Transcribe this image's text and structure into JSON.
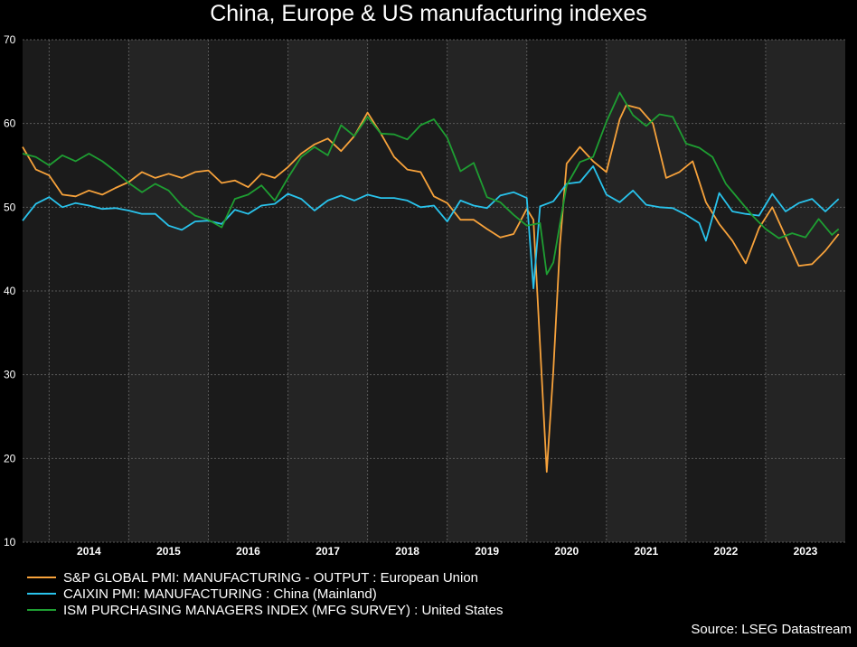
{
  "chart_data": {
    "type": "line",
    "title": "China, Europe & US manufacturing indexes",
    "source": "Source: LSEG Datastream",
    "x_axis": {
      "labels": [
        "2014",
        "2015",
        "2016",
        "2017",
        "2018",
        "2019",
        "2020",
        "2021",
        "2022",
        "2023"
      ],
      "range": [
        "2013-09",
        "2023-12"
      ]
    },
    "y_axis": {
      "ticks": [
        "70",
        "60",
        "50",
        "40",
        "30",
        "20",
        "10"
      ],
      "ylim": [
        10,
        70
      ]
    },
    "grid": true,
    "legend_placement": "bottom-left",
    "series": [
      {
        "name": "S&P GLOBAL PMI: MANUFACTURING - OUTPUT : European Union",
        "color": "#f7a23b",
        "points": [
          [
            "2013-09",
            57.2
          ],
          [
            "2013-11",
            54.5
          ],
          [
            "2014-01",
            53.8
          ],
          [
            "2014-03",
            51.5
          ],
          [
            "2014-05",
            51.3
          ],
          [
            "2014-07",
            52.0
          ],
          [
            "2014-09",
            51.5
          ],
          [
            "2014-11",
            52.3
          ],
          [
            "2015-01",
            53.0
          ],
          [
            "2015-03",
            54.2
          ],
          [
            "2015-05",
            53.5
          ],
          [
            "2015-07",
            54.0
          ],
          [
            "2015-09",
            53.5
          ],
          [
            "2015-11",
            54.2
          ],
          [
            "2016-01",
            54.4
          ],
          [
            "2016-03",
            52.9
          ],
          [
            "2016-05",
            53.2
          ],
          [
            "2016-07",
            52.4
          ],
          [
            "2016-09",
            54.0
          ],
          [
            "2016-11",
            53.5
          ],
          [
            "2017-01",
            54.8
          ],
          [
            "2017-03",
            56.4
          ],
          [
            "2017-05",
            57.5
          ],
          [
            "2017-07",
            58.2
          ],
          [
            "2017-09",
            56.7
          ],
          [
            "2017-11",
            58.5
          ],
          [
            "2018-01",
            61.3
          ],
          [
            "2018-03",
            58.8
          ],
          [
            "2018-05",
            56.0
          ],
          [
            "2018-07",
            54.5
          ],
          [
            "2018-09",
            54.2
          ],
          [
            "2018-11",
            51.3
          ],
          [
            "2019-01",
            50.5
          ],
          [
            "2019-03",
            48.5
          ],
          [
            "2019-05",
            48.5
          ],
          [
            "2019-07",
            47.4
          ],
          [
            "2019-09",
            46.4
          ],
          [
            "2019-11",
            46.8
          ],
          [
            "2020-01",
            49.8
          ],
          [
            "2020-02",
            48.5
          ],
          [
            "2020-04",
            18.4
          ],
          [
            "2020-05",
            30.5
          ],
          [
            "2020-06",
            45.5
          ],
          [
            "2020-07",
            55.2
          ],
          [
            "2020-09",
            57.2
          ],
          [
            "2020-11",
            55.5
          ],
          [
            "2021-01",
            54.2
          ],
          [
            "2021-03",
            60.5
          ],
          [
            "2021-04",
            62.2
          ],
          [
            "2021-06",
            61.8
          ],
          [
            "2021-08",
            60.0
          ],
          [
            "2021-10",
            53.5
          ],
          [
            "2021-12",
            54.2
          ],
          [
            "2022-02",
            55.5
          ],
          [
            "2022-04",
            50.6
          ],
          [
            "2022-06",
            48.0
          ],
          [
            "2022-08",
            46.0
          ],
          [
            "2022-10",
            43.3
          ],
          [
            "2022-12",
            47.5
          ],
          [
            "2023-02",
            50.0
          ],
          [
            "2023-04",
            46.5
          ],
          [
            "2023-06",
            43.0
          ],
          [
            "2023-08",
            43.2
          ],
          [
            "2023-10",
            44.8
          ],
          [
            "2023-12",
            46.8
          ]
        ]
      },
      {
        "name": "CAIXIN PMI: MANUFACTURING : China (Mainland)",
        "color": "#29c3ec",
        "points": [
          [
            "2013-09",
            48.4
          ],
          [
            "2013-11",
            50.4
          ],
          [
            "2014-01",
            51.2
          ],
          [
            "2014-03",
            50.0
          ],
          [
            "2014-05",
            50.5
          ],
          [
            "2014-07",
            50.2
          ],
          [
            "2014-09",
            49.8
          ],
          [
            "2014-11",
            49.9
          ],
          [
            "2015-01",
            49.6
          ],
          [
            "2015-03",
            49.2
          ],
          [
            "2015-05",
            49.2
          ],
          [
            "2015-07",
            47.8
          ],
          [
            "2015-09",
            47.3
          ],
          [
            "2015-11",
            48.3
          ],
          [
            "2016-01",
            48.4
          ],
          [
            "2016-03",
            48.0
          ],
          [
            "2016-05",
            49.7
          ],
          [
            "2016-07",
            49.2
          ],
          [
            "2016-09",
            50.2
          ],
          [
            "2016-11",
            50.4
          ],
          [
            "2017-01",
            51.6
          ],
          [
            "2017-03",
            51.0
          ],
          [
            "2017-05",
            49.6
          ],
          [
            "2017-07",
            50.8
          ],
          [
            "2017-09",
            51.4
          ],
          [
            "2017-11",
            50.8
          ],
          [
            "2018-01",
            51.5
          ],
          [
            "2018-03",
            51.1
          ],
          [
            "2018-05",
            51.1
          ],
          [
            "2018-07",
            50.8
          ],
          [
            "2018-09",
            50.0
          ],
          [
            "2018-11",
            50.2
          ],
          [
            "2019-01",
            48.3
          ],
          [
            "2019-03",
            50.8
          ],
          [
            "2019-05",
            50.2
          ],
          [
            "2019-07",
            49.9
          ],
          [
            "2019-09",
            51.4
          ],
          [
            "2019-11",
            51.8
          ],
          [
            "2020-01",
            51.1
          ],
          [
            "2020-02",
            40.3
          ],
          [
            "2020-03",
            50.1
          ],
          [
            "2020-05",
            50.7
          ],
          [
            "2020-07",
            52.8
          ],
          [
            "2020-09",
            53.0
          ],
          [
            "2020-11",
            54.9
          ],
          [
            "2021-01",
            51.5
          ],
          [
            "2021-03",
            50.6
          ],
          [
            "2021-05",
            52.0
          ],
          [
            "2021-07",
            50.3
          ],
          [
            "2021-09",
            50.0
          ],
          [
            "2021-11",
            49.9
          ],
          [
            "2022-01",
            49.1
          ],
          [
            "2022-03",
            48.1
          ],
          [
            "2022-04",
            46.0
          ],
          [
            "2022-06",
            51.7
          ],
          [
            "2022-08",
            49.5
          ],
          [
            "2022-10",
            49.2
          ],
          [
            "2022-12",
            49.0
          ],
          [
            "2023-02",
            51.6
          ],
          [
            "2023-04",
            49.5
          ],
          [
            "2023-06",
            50.5
          ],
          [
            "2023-08",
            51.0
          ],
          [
            "2023-10",
            49.5
          ],
          [
            "2023-12",
            51.0
          ]
        ]
      },
      {
        "name": "ISM PURCHASING MANAGERS INDEX (MFG SURVEY) : United States",
        "color": "#1e9e32",
        "points": [
          [
            "2013-09",
            56.4
          ],
          [
            "2013-11",
            56.0
          ],
          [
            "2014-01",
            55.0
          ],
          [
            "2014-03",
            56.2
          ],
          [
            "2014-05",
            55.5
          ],
          [
            "2014-07",
            56.4
          ],
          [
            "2014-09",
            55.5
          ],
          [
            "2014-11",
            54.3
          ],
          [
            "2015-01",
            52.9
          ],
          [
            "2015-03",
            51.8
          ],
          [
            "2015-05",
            52.8
          ],
          [
            "2015-07",
            52.0
          ],
          [
            "2015-09",
            50.2
          ],
          [
            "2015-11",
            49.0
          ],
          [
            "2016-01",
            48.5
          ],
          [
            "2016-03",
            47.6
          ],
          [
            "2016-05",
            51.0
          ],
          [
            "2016-07",
            51.5
          ],
          [
            "2016-09",
            52.6
          ],
          [
            "2016-11",
            50.8
          ],
          [
            "2017-01",
            53.5
          ],
          [
            "2017-03",
            56.0
          ],
          [
            "2017-05",
            57.2
          ],
          [
            "2017-07",
            56.2
          ],
          [
            "2017-09",
            59.8
          ],
          [
            "2017-11",
            58.5
          ],
          [
            "2018-01",
            60.8
          ],
          [
            "2018-03",
            58.8
          ],
          [
            "2018-05",
            58.7
          ],
          [
            "2018-07",
            58.1
          ],
          [
            "2018-09",
            59.8
          ],
          [
            "2018-11",
            60.5
          ],
          [
            "2019-01",
            58.3
          ],
          [
            "2019-03",
            54.3
          ],
          [
            "2019-05",
            55.3
          ],
          [
            "2019-07",
            51.2
          ],
          [
            "2019-09",
            50.6
          ],
          [
            "2019-11",
            49.1
          ],
          [
            "2020-01",
            47.8
          ],
          [
            "2020-03",
            48.1
          ],
          [
            "2020-04",
            42.0
          ],
          [
            "2020-05",
            43.4
          ],
          [
            "2020-07",
            52.6
          ],
          [
            "2020-09",
            55.4
          ],
          [
            "2020-11",
            56.0
          ],
          [
            "2021-01",
            60.2
          ],
          [
            "2021-03",
            63.7
          ],
          [
            "2021-05",
            61.0
          ],
          [
            "2021-07",
            59.7
          ],
          [
            "2021-09",
            61.1
          ],
          [
            "2021-11",
            60.8
          ],
          [
            "2022-01",
            57.6
          ],
          [
            "2022-03",
            57.1
          ],
          [
            "2022-05",
            56.0
          ],
          [
            "2022-07",
            52.8
          ],
          [
            "2022-09",
            50.9
          ],
          [
            "2022-11",
            49.0
          ],
          [
            "2023-01",
            47.4
          ],
          [
            "2023-03",
            46.3
          ],
          [
            "2023-05",
            46.9
          ],
          [
            "2023-07",
            46.4
          ],
          [
            "2023-09",
            48.6
          ],
          [
            "2023-11",
            46.7
          ],
          [
            "2023-12",
            47.4
          ]
        ]
      }
    ]
  }
}
